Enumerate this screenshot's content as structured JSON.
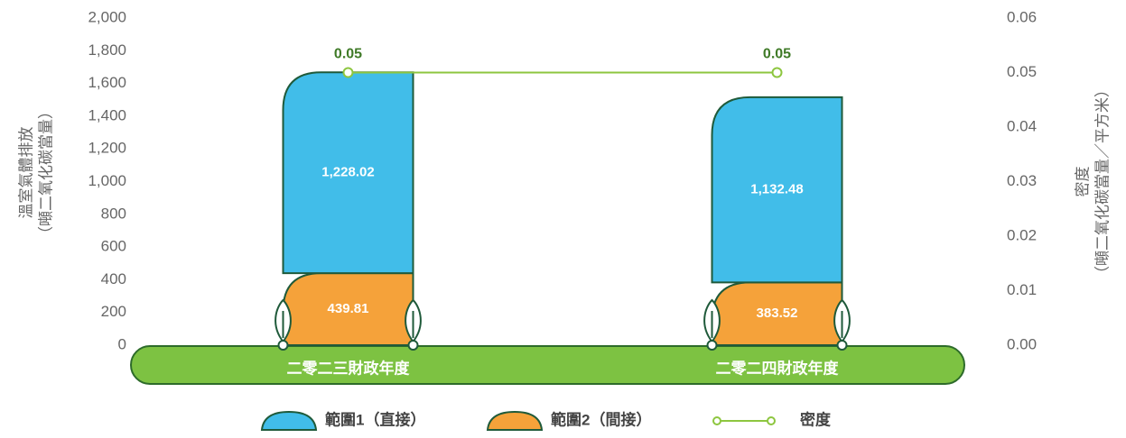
{
  "chart_data": {
    "type": "stacked-bar-line",
    "categories": [
      "二零二三財政年度",
      "二零二四財政年度"
    ],
    "y_label": [
      "溫室氣體排放",
      "（噸二氧化碳當量）"
    ],
    "y2_label": [
      "密度",
      "（噸二氧化碳當量／平方米）"
    ],
    "ylim": [
      0,
      2000
    ],
    "yticks": [
      0,
      200,
      400,
      600,
      800,
      {
        "value": 1000,
        "label": "1,000"
      },
      {
        "value": 1200,
        "label": "1,200"
      },
      {
        "value": 1400,
        "label": "1,400"
      },
      {
        "value": 1600,
        "label": "1,600"
      },
      {
        "value": 1800,
        "label": "1,800"
      },
      {
        "value": 2000,
        "label": "2,000"
      }
    ],
    "y2lim": [
      0,
      0.06
    ],
    "y2ticks": [
      {
        "value": 0,
        "label": "0.00"
      },
      0.01,
      0.02,
      0.03,
      0.04,
      0.05,
      0.06
    ],
    "series": [
      {
        "name": "範圍1（直接）",
        "type": "bar",
        "color": "#41bde9",
        "values": [
          1228.02,
          1132.48
        ],
        "value_labels": [
          "1,228.02",
          "1,132.48"
        ]
      },
      {
        "name": "範圍2（間接）",
        "type": "bar",
        "color": "#f5a23a",
        "values": [
          439.81,
          383.52
        ],
        "value_labels": [
          "439.81",
          "383.52"
        ]
      },
      {
        "name": "密度",
        "type": "line",
        "axis": "y2",
        "color": "#8dc63f",
        "values": [
          0.05,
          0.05
        ]
      }
    ]
  }
}
